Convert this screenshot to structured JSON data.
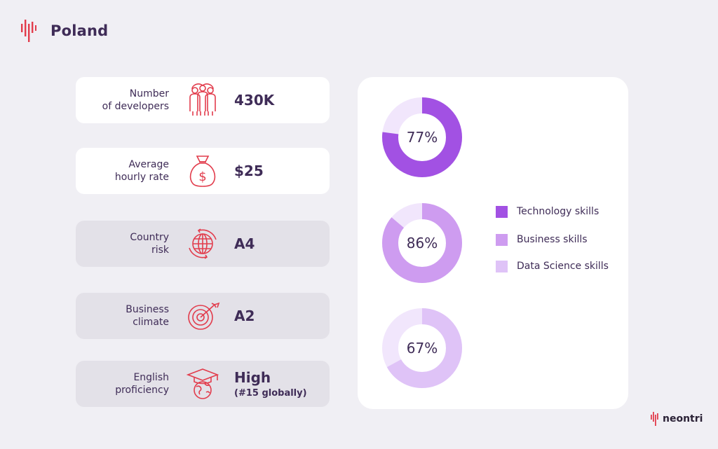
{
  "page": {
    "title": "Poland"
  },
  "brand": {
    "name": "neontri",
    "color": "#e23c4c"
  },
  "metrics": [
    {
      "label_lines": [
        "Number",
        "of developers"
      ],
      "value": "430K",
      "value_sub": "",
      "icon": "developers-icon"
    },
    {
      "label_lines": [
        "Average",
        "hourly rate"
      ],
      "value": "$25",
      "value_sub": "",
      "icon": "money-bag-icon"
    },
    {
      "label_lines": [
        "Country",
        "risk"
      ],
      "value": "A4",
      "value_sub": "",
      "icon": "globe-icon"
    },
    {
      "label_lines": [
        "Business",
        "climate"
      ],
      "value": "A2",
      "value_sub": "",
      "icon": "target-icon"
    },
    {
      "label_lines": [
        "English",
        "proficiency"
      ],
      "value": "High",
      "value_sub": "(#15 globally)",
      "icon": "graduation-globe-icon"
    }
  ],
  "chart_data": {
    "type": "donut",
    "series": [
      {
        "name": "Technology skills",
        "value": 77,
        "label": "77%",
        "color": "#a251e3"
      },
      {
        "name": "Business skills",
        "value": 86,
        "label": "86%",
        "color": "#ce9cf0"
      },
      {
        "name": "Data Science skills",
        "value": 67,
        "label": "67%",
        "color": "#dfc3f7"
      }
    ],
    "remainder_color": "#f1e6fc",
    "legend_position": "right"
  }
}
